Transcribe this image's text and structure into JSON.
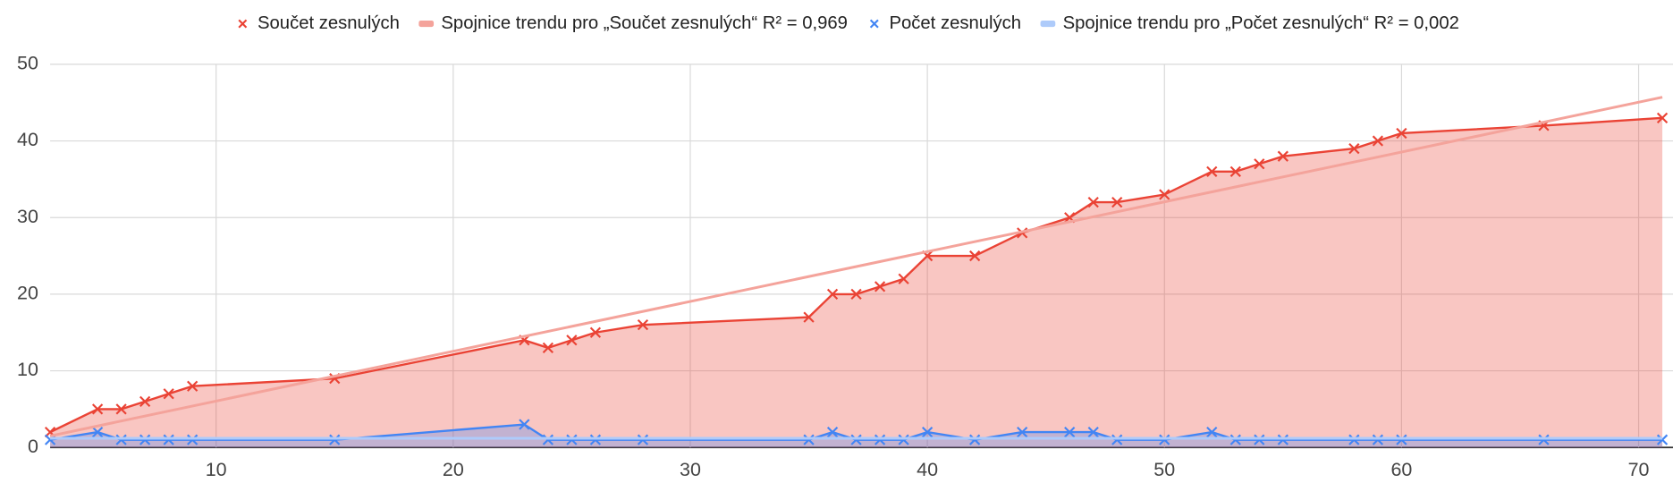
{
  "chart_data": {
    "type": "area",
    "x": [
      3,
      5,
      6,
      7,
      8,
      9,
      15,
      23,
      24,
      25,
      26,
      28,
      35,
      36,
      37,
      38,
      39,
      40,
      42,
      44,
      46,
      47,
      48,
      50,
      52,
      53,
      54,
      55,
      58,
      59,
      60,
      66,
      71
    ],
    "series": [
      {
        "name": "Součet zesnulých",
        "color": "#ea4335",
        "kind": "data",
        "values": [
          2,
          5,
          5,
          6,
          7,
          8,
          9,
          14,
          13,
          14,
          15,
          16,
          17,
          20,
          20,
          21,
          22,
          25,
          25,
          28,
          30,
          32,
          32,
          33,
          36,
          36,
          37,
          38,
          39,
          40,
          41,
          42,
          43
        ]
      },
      {
        "name": "Spojnice trendu pro „Součet zesnulých“ R² = 0,969",
        "color": "#f4a39b",
        "kind": "trendline",
        "x": [
          3,
          71
        ],
        "values": [
          1.5,
          45.7
        ]
      },
      {
        "name": "Počet zesnulých",
        "color": "#4285f4",
        "kind": "data",
        "values": [
          1,
          2,
          1,
          1,
          1,
          1,
          1,
          3,
          1,
          1,
          1,
          1,
          1,
          2,
          1,
          1,
          1,
          2,
          1,
          2,
          2,
          2,
          1,
          1,
          2,
          1,
          1,
          1,
          1,
          1,
          1,
          1,
          1
        ]
      },
      {
        "name": "Spojnice trendu pro „Počet zesnulých“ R² = 0,002",
        "color": "#aecbfa",
        "kind": "trendline",
        "x": [
          3,
          71
        ],
        "values": [
          1.2,
          1.2
        ]
      }
    ],
    "xlim": [
      3,
      71
    ],
    "xticks": [
      10,
      20,
      30,
      40,
      50,
      60,
      70
    ],
    "ylim": [
      0,
      50
    ],
    "yticks": [
      0,
      10,
      20,
      30,
      40,
      50
    ],
    "grid": true,
    "legend": "top"
  }
}
